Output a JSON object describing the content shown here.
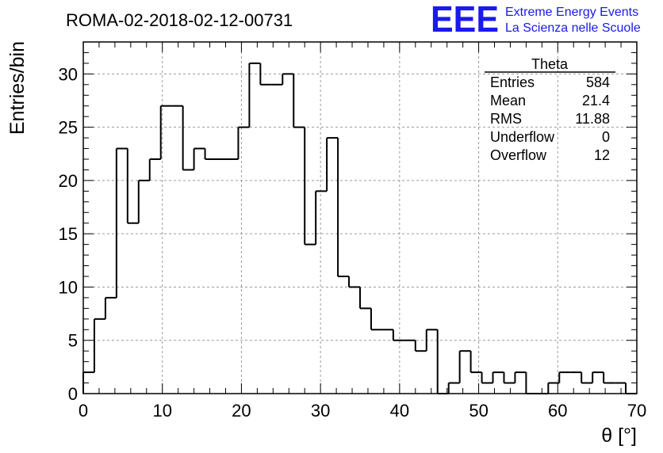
{
  "chart_data": {
    "type": "bar",
    "title": "ROMA-02-2018-02-12-00731",
    "xlabel": "θ [°]",
    "ylabel": "Entries/bin",
    "xlim": [
      0,
      70
    ],
    "ylim": [
      0,
      33
    ],
    "grid": true,
    "bin_width": 1.4,
    "bin_edges_start": 0,
    "values": [
      2,
      7,
      9,
      23,
      16,
      20,
      22,
      27,
      27,
      21,
      23,
      22,
      22,
      22,
      25,
      31,
      29,
      29,
      30,
      25,
      14,
      19,
      24,
      11,
      10,
      8,
      6,
      6,
      5,
      5,
      4,
      6,
      0,
      1,
      4,
      2,
      1,
      2,
      1,
      2,
      0,
      0,
      1,
      2,
      2,
      1,
      2,
      1,
      1,
      0,
      0
    ],
    "x_ticks": [
      0,
      10,
      20,
      30,
      40,
      50,
      60,
      70
    ],
    "y_ticks": [
      0,
      5,
      10,
      15,
      20,
      25,
      30
    ],
    "stats_box": {
      "title": "Theta",
      "rows": [
        {
          "label": "Entries",
          "value": "584"
        },
        {
          "label": "Mean",
          "value": "21.4"
        },
        {
          "label": "RMS",
          "value": "11.88"
        },
        {
          "label": "Underflow",
          "value": "0"
        },
        {
          "label": "Overflow",
          "value": "12"
        }
      ]
    }
  },
  "logo": {
    "mark": "EEE",
    "line1": "Extreme Energy Events",
    "line2": "La Scienza nelle Scuole",
    "color": "#1a1aee"
  },
  "colors": {
    "line": "#000000",
    "grid": "#9a9a9a",
    "logo": "#1a1aee"
  }
}
